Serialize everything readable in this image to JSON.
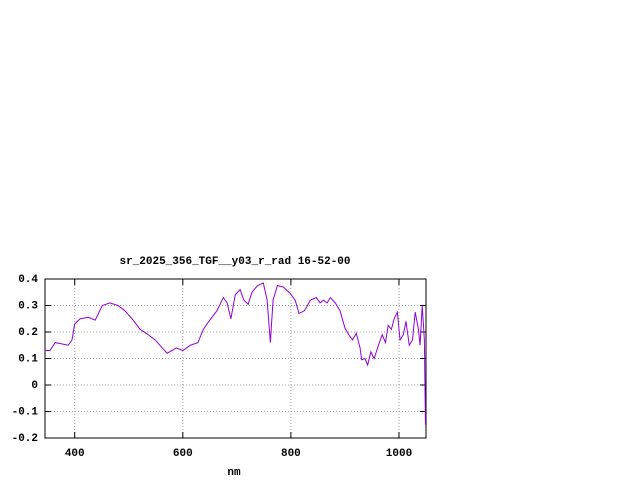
{
  "chart_data": {
    "type": "line",
    "title": "sr_2025_356_TGF__y03_r_rad 16-52-00",
    "xlabel": "nm",
    "x": [
      345,
      354,
      364,
      376,
      388,
      395,
      400,
      410,
      425,
      438,
      451,
      465,
      480,
      493,
      508,
      521,
      536,
      549,
      562,
      571,
      580,
      588,
      600,
      614,
      628,
      638,
      650,
      663,
      675,
      682,
      689,
      697,
      706,
      713,
      721,
      728,
      738,
      749,
      756,
      762,
      767,
      775,
      786,
      799,
      808,
      815,
      825,
      836,
      847,
      854,
      860,
      867,
      873,
      882,
      891,
      900,
      907,
      914,
      921,
      928,
      931,
      937,
      942,
      948,
      954,
      962,
      969,
      975,
      980,
      986,
      991,
      997,
      1002,
      1008,
      1013,
      1019,
      1025,
      1030,
      1036,
      1039,
      1043,
      1047,
      1049
    ],
    "series": [
      {
        "color": "#9400d3",
        "values": [
          0.13,
          0.13,
          0.16,
          0.155,
          0.15,
          0.17,
          0.23,
          0.25,
          0.255,
          0.245,
          0.3,
          0.31,
          0.3,
          0.28,
          0.245,
          0.21,
          0.19,
          0.17,
          0.14,
          0.12,
          0.13,
          0.14,
          0.13,
          0.15,
          0.16,
          0.21,
          0.245,
          0.28,
          0.33,
          0.31,
          0.25,
          0.34,
          0.36,
          0.32,
          0.305,
          0.35,
          0.375,
          0.385,
          0.32,
          0.16,
          0.32,
          0.375,
          0.37,
          0.345,
          0.32,
          0.27,
          0.28,
          0.32,
          0.33,
          0.31,
          0.32,
          0.31,
          0.33,
          0.31,
          0.28,
          0.215,
          0.19,
          0.17,
          0.195,
          0.14,
          0.095,
          0.1,
          0.075,
          0.125,
          0.1,
          0.15,
          0.19,
          0.16,
          0.225,
          0.21,
          0.25,
          0.275,
          0.17,
          0.19,
          0.24,
          0.15,
          0.17,
          0.275,
          0.21,
          0.15,
          0.3,
          0.17,
          -0.15
        ]
      }
    ],
    "xlim": [
      345,
      1050
    ],
    "xticks": [
      400,
      600,
      800,
      1000
    ],
    "ylim": [
      -0.2,
      0.4
    ],
    "yticks": [
      0.4,
      0.3,
      0.2,
      0.1,
      0,
      -0.1,
      -0.2
    ],
    "grid": true
  }
}
